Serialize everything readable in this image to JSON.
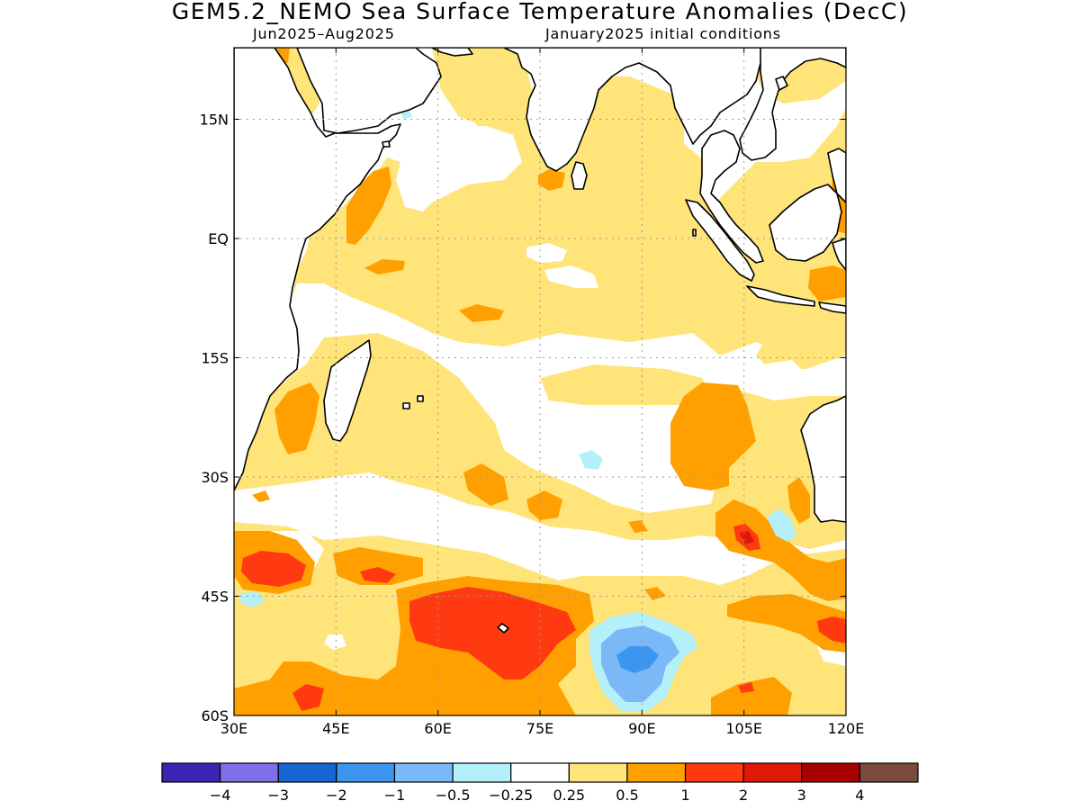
{
  "title": "GEM5.2_NEMO Sea Surface Temperature Anomalies (DecC)",
  "subtitle_left": "Jun2025–Aug2025",
  "subtitle_right": "January2025 initial conditions",
  "map": {
    "lon_min": 30,
    "lon_max": 120,
    "lat_min": -60,
    "lat_max": 24,
    "x_ticks": [
      {
        "value": 30,
        "label": "30E"
      },
      {
        "value": 45,
        "label": "45E"
      },
      {
        "value": 60,
        "label": "60E"
      },
      {
        "value": 75,
        "label": "75E"
      },
      {
        "value": 90,
        "label": "90E"
      },
      {
        "value": 105,
        "label": "105E"
      },
      {
        "value": 120,
        "label": "120E"
      }
    ],
    "y_ticks": [
      {
        "value": 15,
        "label": "15N"
      },
      {
        "value": 0,
        "label": "EQ"
      },
      {
        "value": -15,
        "label": "15S"
      },
      {
        "value": -30,
        "label": "30S"
      },
      {
        "value": -45,
        "label": "45S"
      },
      {
        "value": -60,
        "label": "60S"
      }
    ],
    "grid": true
  },
  "colors": {
    "land": "#ffffff",
    "coast": "#000000",
    "grid": "#9a9a9a",
    "pos_025": "#ffe47a",
    "pos_05": "#ffa000",
    "pos_1": "#ff3a10",
    "pos_2": "#e01808",
    "neg_025": "#b4f0fa",
    "neg_05": "#7ab8f8",
    "neg_1": "#3c96f0"
  },
  "legend": {
    "colors": [
      "#3a24b4",
      "#8070e8",
      "#1864d4",
      "#3c96f0",
      "#7ab8f8",
      "#b4f0fa",
      "#ffffff",
      "#ffe47a",
      "#ffa000",
      "#ff3a10",
      "#e01808",
      "#a80000",
      "#7a4a3c"
    ],
    "labels": [
      "−4",
      "−3",
      "−2",
      "−1",
      "−0.5",
      "−0.25",
      "0.25",
      "0.5",
      "1",
      "2",
      "3",
      "4"
    ]
  }
}
